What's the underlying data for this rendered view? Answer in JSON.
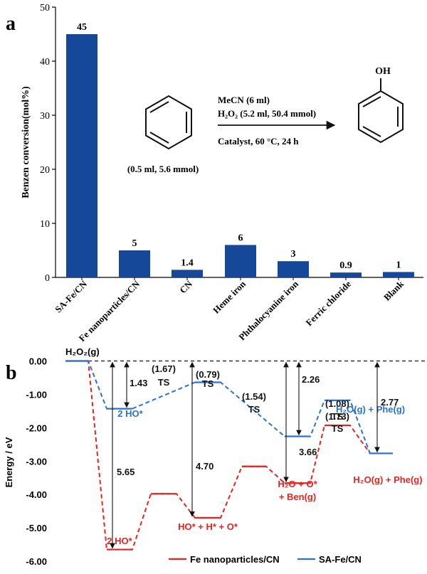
{
  "chart_data": [
    {
      "type": "bar",
      "panel_label": "a",
      "ylabel": "Benzen conversion(mol%)",
      "ylim": [
        0,
        50
      ],
      "yticks": [
        0,
        10,
        20,
        30,
        40,
        50
      ],
      "categories": [
        "SA-Fe/CN",
        "Fe nanoparticles/CN",
        "CN",
        "Heme iron",
        "Phthalocyanine iron",
        "Ferric chloride",
        "Blank"
      ],
      "values": [
        45,
        5,
        1.4,
        6,
        3,
        0.9,
        1
      ],
      "value_labels": [
        "45",
        "5",
        "1.4",
        "6",
        "3",
        "0.9",
        "1"
      ],
      "bar_color": "#16489a",
      "reaction_inset": {
        "reactant_amount": "(0.5 ml, 5.6 mmol)",
        "conditions": [
          "MeCN (6 ml)",
          "H₂O₂ (5.2 ml, 50.4 mmol)",
          "Catalyst, 60 °C, 24 h"
        ],
        "product_group": "OH"
      }
    },
    {
      "type": "line",
      "panel_label": "b",
      "ylabel": "Energy / eV",
      "ylim": [
        -6.0,
        0.0
      ],
      "yticks": [
        "0.00",
        "-1.00",
        "-2.00",
        "-3.00",
        "-4.00",
        "-5.00",
        "-6.00"
      ],
      "start_label": "H₂O₂(g)",
      "series": [
        {
          "name": "Fe nanoparticles/CN",
          "color": "#e8231f",
          "levels": [
            {
              "step": 0,
              "energy": 0.0
            },
            {
              "step": 1,
              "energy": -5.65,
              "label": "2 HO*"
            },
            {
              "step": 2,
              "energy": -3.98,
              "label": "TS",
              "barrier": "(1.67)"
            },
            {
              "step": 3,
              "energy": -4.7,
              "label": "HO* + H* + O*"
            },
            {
              "step": 4,
              "energy": -3.16,
              "label": "TS",
              "barrier": "(1.54)"
            },
            {
              "step": 5,
              "energy": -3.66,
              "label": "H₂O + O*",
              "label2": "+ Ben(g)"
            },
            {
              "step": 6,
              "energy": -1.93,
              "label": "TS",
              "barrier": "(1.73)"
            },
            {
              "step": 7,
              "energy": -2.77,
              "label": "H₂O(g) + Phe(g)"
            }
          ]
        },
        {
          "name": "SA-Fe/CN",
          "color": "#2a72d6",
          "levels": [
            {
              "step": 0,
              "energy": 0.0
            },
            {
              "step": 1,
              "energy": -1.43,
              "label": "2 HO*"
            },
            {
              "step": 2,
              "energy": -0.64,
              "label": "TS",
              "barrier": "(0.79)"
            },
            {
              "step": 3,
              "energy": -2.26
            },
            {
              "step": 4,
              "energy": -1.18,
              "label": "TS",
              "barrier": "(1.08)"
            },
            {
              "step": 5,
              "energy": -2.77,
              "label": "H₂O(g) + Phe(g)"
            }
          ]
        }
      ],
      "energy_arrows": [
        "1.43",
        "5.65",
        "4.70",
        "2.26",
        "3.66",
        "2.77"
      ]
    }
  ]
}
